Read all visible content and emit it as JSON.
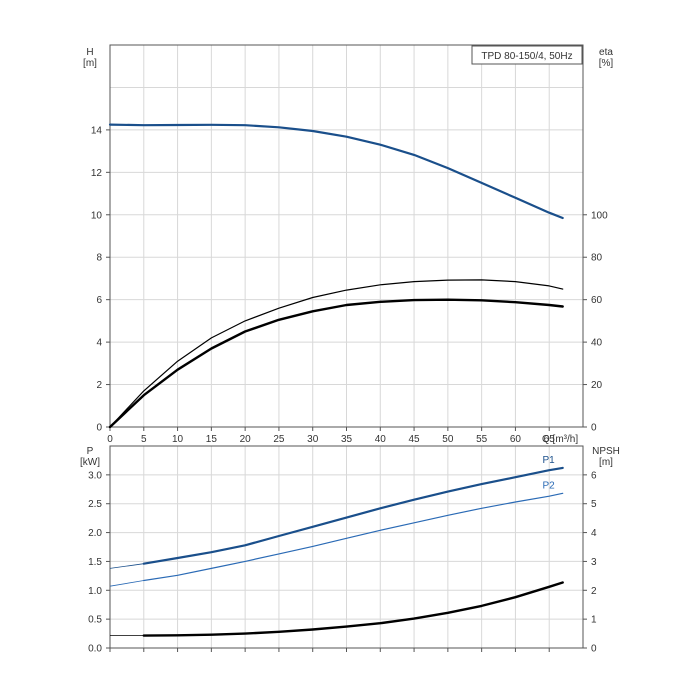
{
  "chart_data": [
    {
      "type": "line",
      "title": "TPD 80-150/4, 50Hz",
      "x_axis": {
        "label": "Q [m³/h]",
        "range": [
          0,
          70
        ],
        "ticks": [
          0,
          5,
          10,
          15,
          20,
          25,
          30,
          35,
          40,
          45,
          50,
          55,
          60,
          65
        ],
        "tick_labels": [
          "0",
          "5",
          "10",
          "15",
          "20",
          "25",
          "30",
          "35",
          "40",
          "45",
          "50",
          "55",
          "60",
          "65"
        ]
      },
      "y_axis_left": {
        "label_top": "H",
        "unit": "[m]",
        "range": [
          0,
          18
        ],
        "ticks": [
          0,
          2,
          4,
          6,
          8,
          10,
          12,
          14
        ],
        "tick_labels": [
          "0",
          "2",
          "4",
          "6",
          "8",
          "10",
          "12",
          "14"
        ]
      },
      "y_axis_right": {
        "label_top": "eta",
        "unit": "[%]",
        "range": [
          0,
          180
        ],
        "ticks": [
          0,
          20,
          40,
          60,
          80,
          100
        ],
        "tick_labels": [
          "0",
          "20",
          "40",
          "60",
          "80",
          "100"
        ]
      },
      "grid": true,
      "series": [
        {
          "axis": "left",
          "color": "#1a4f8b",
          "x": [
            0,
            5,
            10,
            15,
            20,
            25,
            30,
            35,
            40,
            45,
            50,
            55,
            60,
            65,
            67
          ],
          "y": [
            14.25,
            14.22,
            14.23,
            14.24,
            14.22,
            14.12,
            13.95,
            13.68,
            13.3,
            12.82,
            12.2,
            11.5,
            10.8,
            10.1,
            9.85
          ],
          "extrapolated_x": [
            0,
            5
          ],
          "extrapolated_y": [
            14.25,
            14.22
          ]
        },
        {
          "axis": "right",
          "color": "#000000",
          "x": [
            0,
            5,
            10,
            15,
            20,
            25,
            30,
            35,
            40,
            45,
            50,
            55,
            60,
            65,
            67
          ],
          "y": [
            0,
            15,
            27,
            37,
            45,
            50.5,
            54.5,
            57.5,
            59,
            59.8,
            60,
            59.7,
            58.8,
            57.5,
            56.8
          ],
          "extrapolated_x": [
            0,
            5
          ],
          "extrapolated_y": [
            0,
            15
          ]
        },
        {
          "axis": "right",
          "color": "#000000",
          "x": [
            0,
            5,
            10,
            15,
            20,
            25,
            30,
            35,
            40,
            45,
            50,
            55,
            60,
            65,
            67
          ],
          "y": [
            0,
            17,
            31,
            42,
            50,
            56,
            61,
            64.5,
            67,
            68.5,
            69.2,
            69.3,
            68.5,
            66.5,
            65
          ]
        }
      ]
    },
    {
      "type": "line",
      "x_axis": {
        "range": [
          0,
          70
        ],
        "ticks": [
          0,
          5,
          10,
          15,
          20,
          25,
          30,
          35,
          40,
          45,
          50,
          55,
          60,
          65
        ]
      },
      "y_axis_left": {
        "label_top": "P",
        "unit": "[kW]",
        "range": [
          0,
          3.5
        ],
        "ticks": [
          0,
          0.5,
          1.0,
          1.5,
          2.0,
          2.5,
          3.0
        ],
        "tick_labels": [
          "0.0",
          "0.5",
          "1.0",
          "1.5",
          "2.0",
          "2.5",
          "3.0"
        ]
      },
      "y_axis_right": {
        "label_top": "NPSH",
        "unit": "[m]",
        "range": [
          0,
          7
        ],
        "ticks": [
          0,
          1,
          2,
          3,
          4,
          5,
          6
        ],
        "tick_labels": [
          "0",
          "1",
          "2",
          "3",
          "4",
          "5",
          "6"
        ]
      },
      "grid": true,
      "series": [
        {
          "name": "P1",
          "axis": "left",
          "color": "#1a4f8b",
          "x": [
            5,
            10,
            15,
            20,
            25,
            30,
            35,
            40,
            45,
            50,
            55,
            60,
            65,
            67
          ],
          "y": [
            1.46,
            1.56,
            1.66,
            1.78,
            1.94,
            2.1,
            2.26,
            2.42,
            2.57,
            2.71,
            2.84,
            2.96,
            3.08,
            3.12
          ],
          "extrapolated_x": [
            0,
            5
          ],
          "extrapolated_y": [
            1.38,
            1.46
          ]
        },
        {
          "name": "P2",
          "axis": "left",
          "color": "#2a6ab5",
          "x": [
            5,
            10,
            15,
            20,
            25,
            30,
            35,
            40,
            45,
            50,
            55,
            60,
            65,
            67
          ],
          "y": [
            1.17,
            1.26,
            1.38,
            1.5,
            1.63,
            1.76,
            1.9,
            2.04,
            2.17,
            2.3,
            2.42,
            2.53,
            2.63,
            2.68
          ],
          "extrapolated_x": [
            0,
            5
          ],
          "extrapolated_y": [
            1.07,
            1.17
          ]
        },
        {
          "axis": "right",
          "color": "#000000",
          "x": [
            5,
            10,
            15,
            20,
            25,
            30,
            35,
            40,
            45,
            50,
            55,
            60,
            65,
            67
          ],
          "y": [
            0.43,
            0.44,
            0.46,
            0.5,
            0.56,
            0.64,
            0.74,
            0.86,
            1.02,
            1.22,
            1.46,
            1.76,
            2.12,
            2.27
          ],
          "extrapolated_x": [
            0,
            5
          ],
          "extrapolated_y": [
            0.43,
            0.43
          ]
        }
      ]
    }
  ]
}
